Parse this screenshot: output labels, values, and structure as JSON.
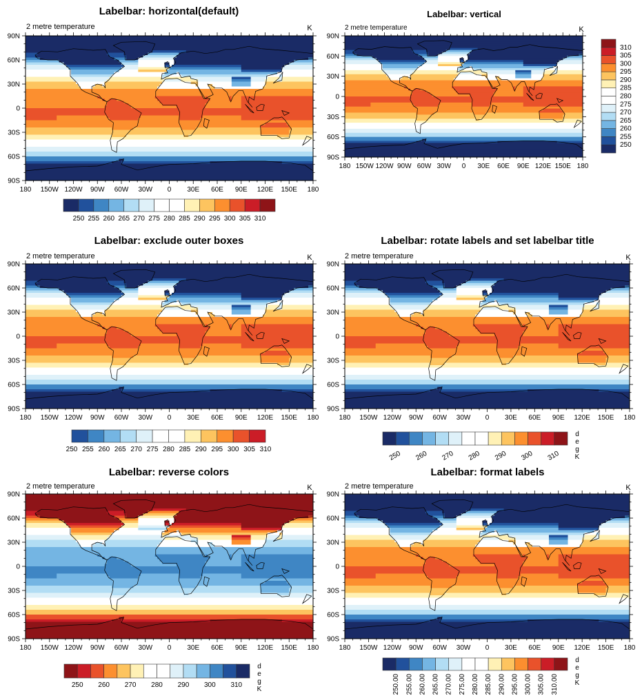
{
  "chart_data": {
    "type": "heatmap",
    "variable": "2 metre temperature",
    "units": "K",
    "levels": [
      250,
      255,
      260,
      265,
      270,
      275,
      280,
      285,
      290,
      295,
      300,
      305,
      310
    ],
    "palette": [
      "#1a2b66",
      "#21519c",
      "#3f86c4",
      "#74b5e3",
      "#b2ddf4",
      "#dff1f9",
      "#ffffff",
      "#ffffff",
      "#fff1b5",
      "#fdc45f",
      "#fc8f2f",
      "#e9522b",
      "#cb1d27",
      "#8e1418"
    ],
    "x_ticks": [
      "180",
      "150W",
      "120W",
      "90W",
      "60W",
      "30W",
      "0",
      "30E",
      "60E",
      "90E",
      "120E",
      "150E",
      "180"
    ],
    "y_ticks": [
      "90N",
      "60N",
      "30N",
      "0",
      "30S",
      "60S",
      "90S"
    ],
    "lon_range": [
      -180,
      180
    ],
    "lat_range": [
      -90,
      90
    ],
    "panels": [
      {
        "id": "horizontal",
        "title": "Labelbar: horizontal(default)",
        "left_string": "2 metre temperature",
        "right_string": "K",
        "labelbar": {
          "orientation": "horizontal",
          "outer_boxes": true,
          "reverse": false,
          "labels": [
            "250",
            "255",
            "260",
            "265",
            "270",
            "275",
            "280",
            "285",
            "290",
            "295",
            "300",
            "305",
            "310"
          ],
          "label_angle": 0,
          "title": ""
        }
      },
      {
        "id": "vertical",
        "title": "Labelbar: vertical",
        "left_string": "2 metre temperature",
        "right_string": "K",
        "labelbar": {
          "orientation": "vertical",
          "outer_boxes": true,
          "reverse": false,
          "labels": [
            "250",
            "255",
            "260",
            "265",
            "270",
            "275",
            "280",
            "285",
            "290",
            "295",
            "300",
            "305",
            "310"
          ],
          "label_angle": 0,
          "title": ""
        }
      },
      {
        "id": "exclude-outer",
        "title": "Labelbar: exclude outer boxes",
        "left_string": "2 metre temperature",
        "right_string": "K",
        "labelbar": {
          "orientation": "horizontal",
          "outer_boxes": false,
          "reverse": false,
          "labels": [
            "250",
            "255",
            "260",
            "265",
            "270",
            "275",
            "280",
            "285",
            "290",
            "295",
            "300",
            "305",
            "310"
          ],
          "label_angle": 0,
          "title": ""
        }
      },
      {
        "id": "rotate-title",
        "title": "Labelbar: rotate labels and set labelbar title",
        "left_string": "2 metre temperature",
        "right_string": "K",
        "labelbar": {
          "orientation": "horizontal",
          "outer_boxes": true,
          "reverse": false,
          "labels": [
            "250",
            "260",
            "270",
            "280",
            "290",
            "300",
            "310"
          ],
          "label_angle": 30,
          "title": "degK"
        }
      },
      {
        "id": "reverse",
        "title": "Labelbar: reverse colors",
        "left_string": "2 metre temperature",
        "right_string": "K",
        "labelbar": {
          "orientation": "horizontal",
          "outer_boxes": true,
          "reverse": true,
          "labels": [
            "250",
            "260",
            "270",
            "280",
            "290",
            "300",
            "310"
          ],
          "label_angle": 0,
          "title": "degK"
        }
      },
      {
        "id": "format",
        "title": "Labelbar: format labels",
        "left_string": "2 metre temperature",
        "right_string": "K",
        "labelbar": {
          "orientation": "horizontal",
          "outer_boxes": true,
          "reverse": false,
          "labels": [
            "250.00",
            "255.00",
            "260.00",
            "265.00",
            "270.00",
            "275.00",
            "280.00",
            "285.00",
            "290.00",
            "295.00",
            "300.00",
            "305.00",
            "310.00"
          ],
          "label_angle": 90,
          "title": "degK"
        }
      }
    ]
  }
}
